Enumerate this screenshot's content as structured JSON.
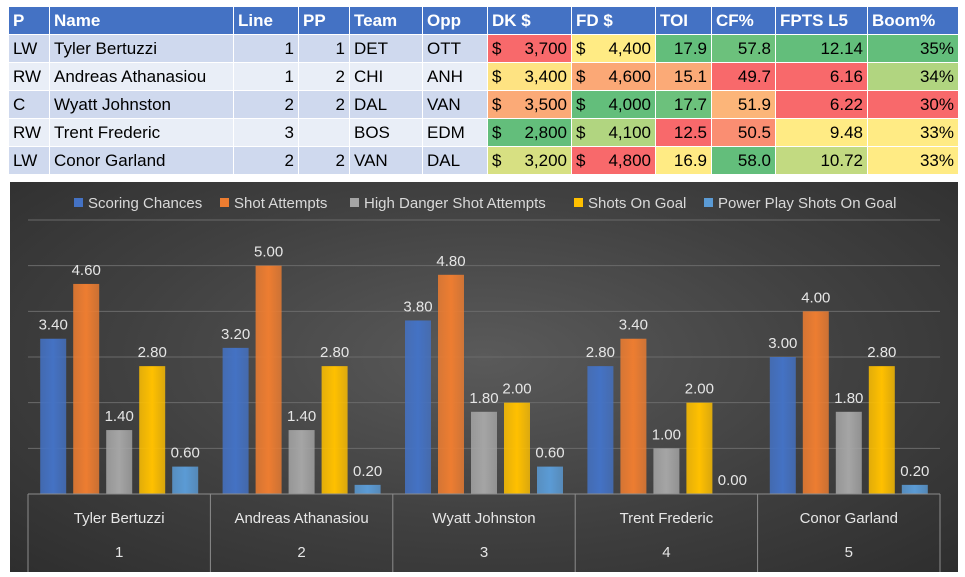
{
  "table": {
    "headers": [
      "P",
      "Name",
      "Line",
      "PP",
      "Team",
      "Opp",
      "DK $",
      "FD $",
      "TOI",
      "CF%",
      "FPTS L5",
      "Boom%"
    ],
    "rows": [
      {
        "p": "LW",
        "name": "Tyler Bertuzzi",
        "line": "1",
        "pp": "1",
        "team": "DET",
        "opp": "OTT",
        "dk": "3,700",
        "fd": "4,400",
        "toi": "17.9",
        "cf": "57.8",
        "fpts": "12.14",
        "boom": "35%",
        "colors": {
          "dk": "#f8696b",
          "fd": "#ffeb84",
          "toi": "#63be7b",
          "cf": "#6cc17c",
          "fpts": "#63be7b",
          "boom": "#63be7b"
        }
      },
      {
        "p": "RW",
        "name": "Andreas Athanasiou",
        "line": "1",
        "pp": "2",
        "team": "CHI",
        "opp": "ANH",
        "dk": "3,400",
        "fd": "4,600",
        "toi": "15.1",
        "cf": "49.7",
        "fpts": "6.16",
        "boom": "34%",
        "colors": {
          "dk": "#fee382",
          "fd": "#fba876",
          "toi": "#fbaa77",
          "cf": "#f8696b",
          "fpts": "#f8696b",
          "boom": "#b1d580"
        }
      },
      {
        "p": "C",
        "name": "Wyatt Johnston",
        "line": "2",
        "pp": "2",
        "team": "DAL",
        "opp": "VAN",
        "dk": "3,500",
        "fd": "4,000",
        "toi": "17.7",
        "cf": "51.9",
        "fpts": "6.22",
        "boom": "30%",
        "colors": {
          "dk": "#fbaa77",
          "fd": "#63be7b",
          "toi": "#6cc17c",
          "cf": "#fcb579",
          "fpts": "#f8696b",
          "boom": "#f8696b"
        }
      },
      {
        "p": "RW",
        "name": "Trent Frederic",
        "line": "3",
        "pp": "",
        "team": "BOS",
        "opp": "EDM",
        "dk": "2,800",
        "fd": "4,100",
        "toi": "12.5",
        "cf": "50.5",
        "fpts": "9.48",
        "boom": "33%",
        "colors": {
          "dk": "#63be7b",
          "fd": "#b1d580",
          "toi": "#f8696b",
          "cf": "#fa8e72",
          "fpts": "#ffeb84",
          "boom": "#ffeb84"
        }
      },
      {
        "p": "LW",
        "name": "Conor Garland",
        "line": "2",
        "pp": "2",
        "team": "VAN",
        "opp": "DAL",
        "dk": "3,200",
        "fd": "4,800",
        "toi": "16.9",
        "cf": "58.0",
        "fpts": "10.72",
        "boom": "33%",
        "colors": {
          "dk": "#d7e082",
          "fd": "#f8696b",
          "toi": "#ffeb84",
          "cf": "#63be7b",
          "fpts": "#c2da81",
          "boom": "#ffeb84"
        }
      }
    ],
    "currency_symbol": "$"
  },
  "chart_data": {
    "type": "bar",
    "legend_position": "top",
    "grid": true,
    "ylim": [
      0,
      6
    ],
    "categories": [
      {
        "name": "Tyler Bertuzzi",
        "group": "1"
      },
      {
        "name": "Andreas Athanasiou",
        "group": "2"
      },
      {
        "name": "Wyatt Johnston",
        "group": "3"
      },
      {
        "name": "Trent Frederic",
        "group": "4"
      },
      {
        "name": "Conor Garland",
        "group": "5"
      }
    ],
    "series": [
      {
        "name": "Scoring Chances",
        "color": "#4472c4",
        "values": [
          3.4,
          3.2,
          3.8,
          2.8,
          3.0
        ]
      },
      {
        "name": "Shot Attempts",
        "color": "#ed7d31",
        "values": [
          4.6,
          5.0,
          4.8,
          3.4,
          4.0
        ]
      },
      {
        "name": "High Danger Shot Attempts",
        "color": "#a5a5a5",
        "values": [
          1.4,
          1.4,
          1.8,
          1.0,
          1.8
        ]
      },
      {
        "name": "Shots On Goal",
        "color": "#ffc000",
        "values": [
          2.8,
          2.8,
          2.0,
          2.0,
          2.8
        ]
      },
      {
        "name": "Power Play Shots On Goal",
        "color": "#5b9bd5",
        "values": [
          0.6,
          0.2,
          0.6,
          0.0,
          0.2
        ]
      }
    ]
  }
}
